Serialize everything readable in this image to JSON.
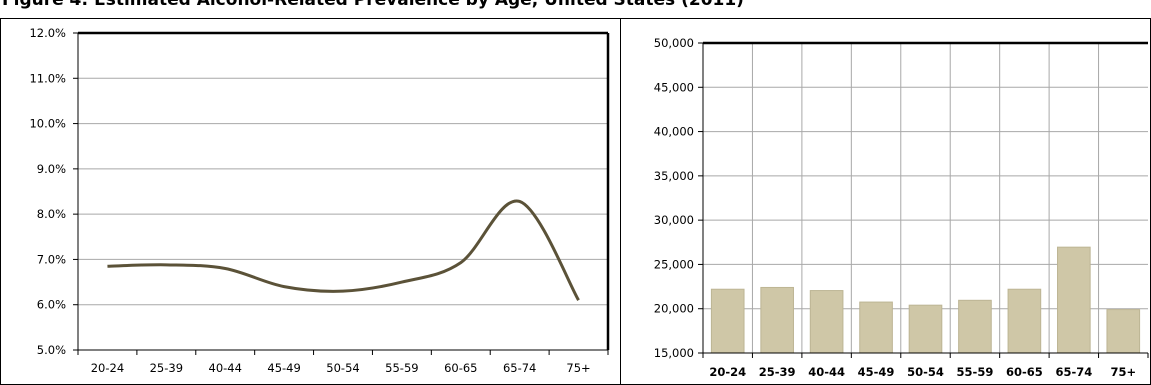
{
  "figure": {
    "title": "Figure 4: Estimated Alcohol-Related Prevalence by Age, United States (2011)"
  },
  "colors": {
    "line": "#5b5238",
    "bar_fill": "#cfc7a7",
    "bar_stroke": "#bdb594",
    "grid": "#a8a8a8",
    "axis": "#000000"
  },
  "chart_data": [
    {
      "type": "line",
      "categories": [
        "20-24",
        "25-39",
        "40-44",
        "45-49",
        "50-54",
        "55-59",
        "60-65",
        "65-74",
        "75+"
      ],
      "series": [
        {
          "values": [
            6.85,
            6.88,
            6.8,
            6.4,
            6.3,
            6.5,
            6.93,
            8.28,
            6.1
          ]
        }
      ],
      "ylim": [
        5.0,
        12.0
      ],
      "yticks": [
        "5.0%",
        "6.0%",
        "7.0%",
        "8.0%",
        "9.0%",
        "10.0%",
        "11.0%",
        "12.0%"
      ],
      "grid": "horizontal",
      "smooth": true
    },
    {
      "type": "bar",
      "categories": [
        "20-24",
        "25-39",
        "40-44",
        "45-49",
        "50-54",
        "55-59",
        "60-65",
        "65-74",
        "75+"
      ],
      "series": [
        {
          "values": [
            22200,
            22400,
            22050,
            20750,
            20400,
            20950,
            22200,
            26950,
            19900
          ]
        }
      ],
      "ylim": [
        15000,
        50000
      ],
      "yticks": [
        "15,000",
        "20,000",
        "25,000",
        "30,000",
        "35,000",
        "40,000",
        "45,000",
        "50,000"
      ],
      "grid": "both"
    }
  ]
}
